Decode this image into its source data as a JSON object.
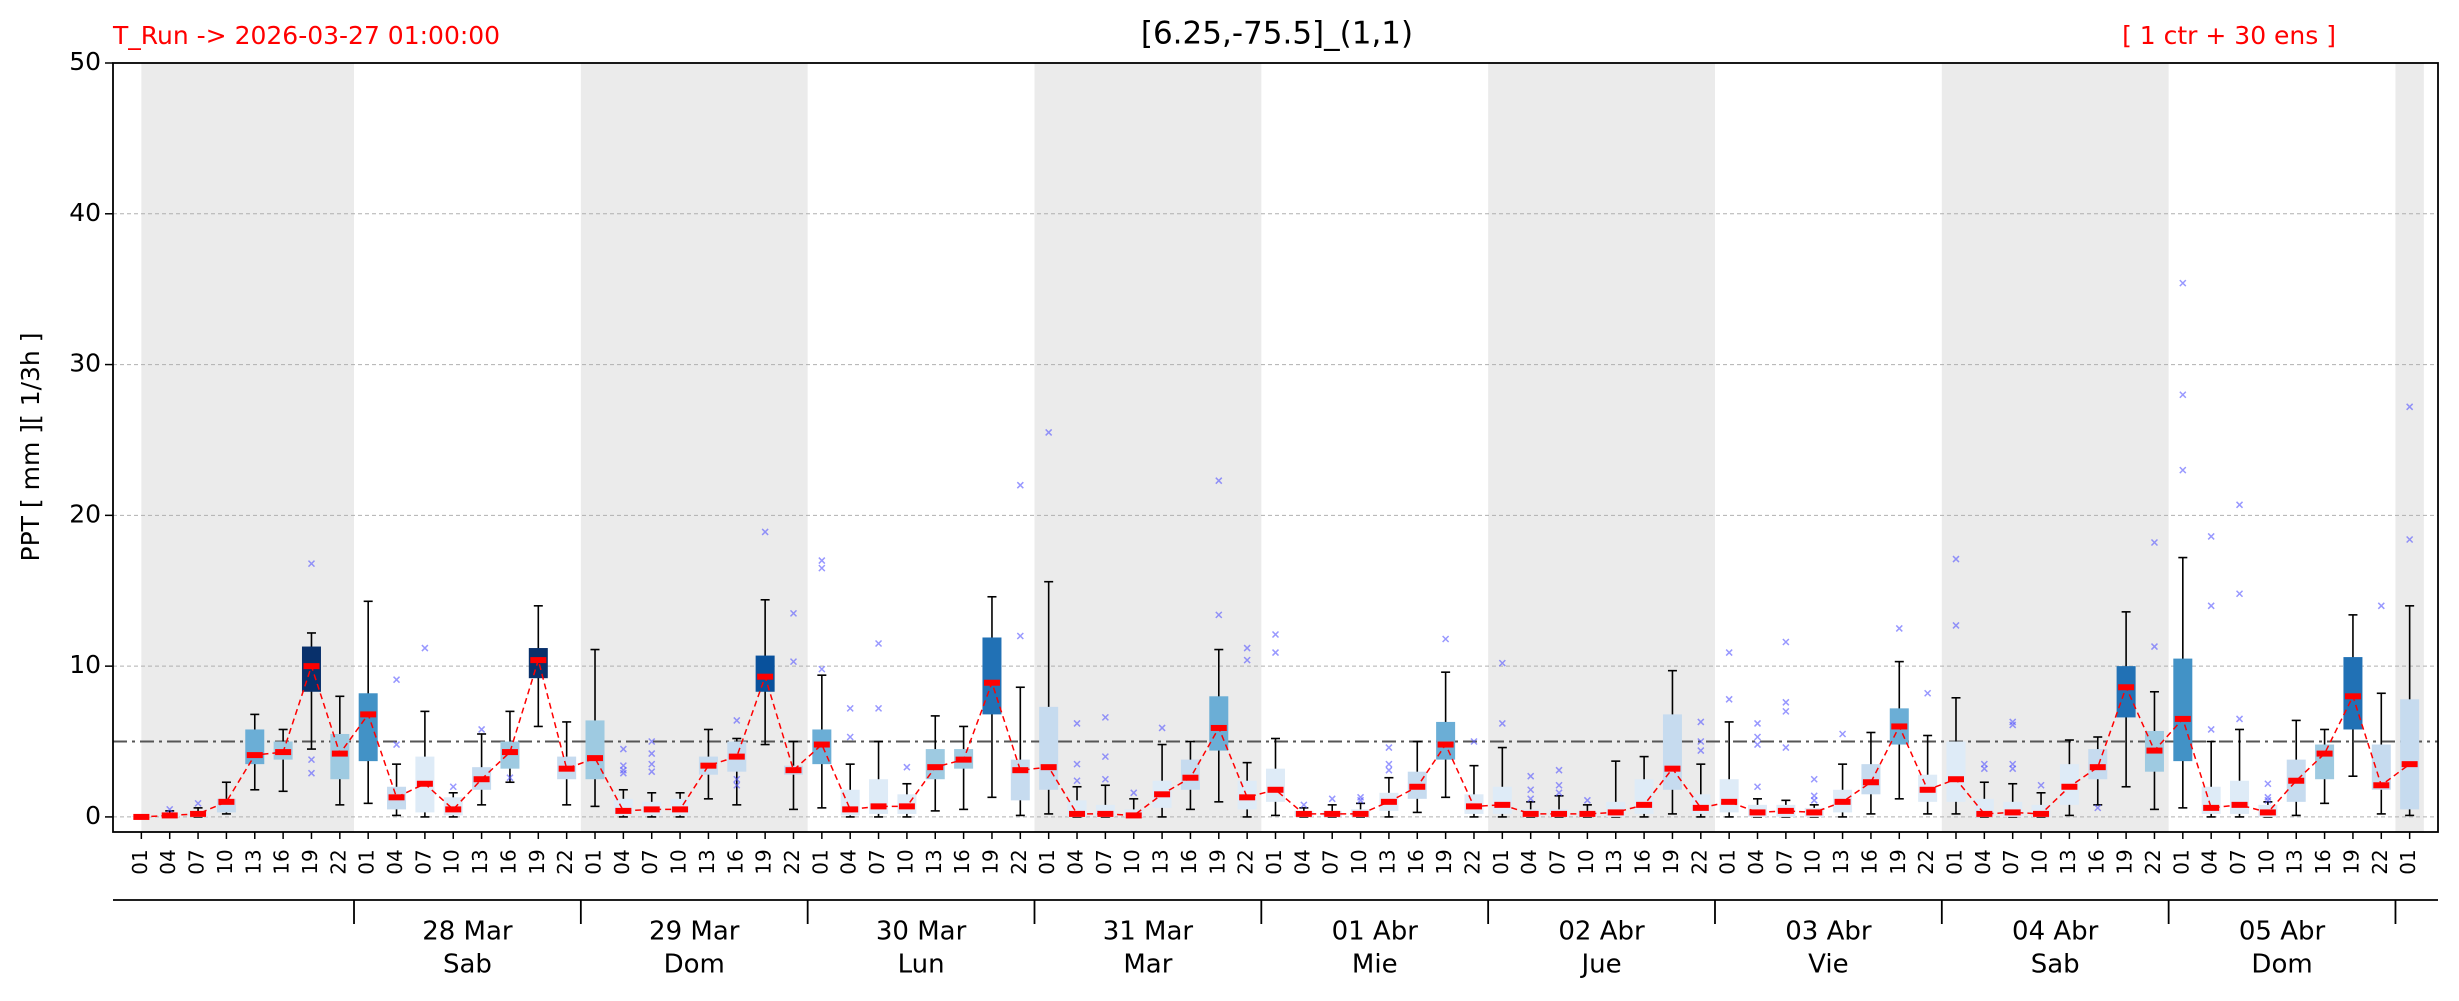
{
  "chart_data": {
    "type": "box",
    "title": "[6.25,-75.5]_(1,1)",
    "run_label": "T_Run -> 2026-03-27  01:00:00",
    "members_label": "[ 1 ctr + 30 ens ]",
    "y_label": "PPT  [ mm ][ 1/3h ]",
    "categories": [
      "01",
      "04",
      "07",
      "10",
      "13",
      "16",
      "19",
      "22",
      "01",
      "04",
      "07",
      "10",
      "13",
      "16",
      "19",
      "22",
      "01",
      "04",
      "07",
      "10",
      "13",
      "16",
      "19",
      "22",
      "01",
      "04",
      "07",
      "10",
      "13",
      "16",
      "19",
      "22",
      "01",
      "04",
      "07",
      "10",
      "13",
      "16",
      "19",
      "22",
      "01",
      "04",
      "07",
      "10",
      "13",
      "16",
      "19",
      "22",
      "01",
      "04",
      "07",
      "10",
      "13",
      "16",
      "19",
      "22",
      "01",
      "04",
      "07",
      "10",
      "13",
      "16",
      "19",
      "22",
      "01",
      "04",
      "07",
      "10",
      "13",
      "16",
      "19",
      "22",
      "01",
      "04",
      "07",
      "10",
      "13",
      "16",
      "19",
      "22",
      "01"
    ],
    "days": [
      {
        "date": "28 Mar",
        "weekday": "Sab"
      },
      {
        "date": "29 Mar",
        "weekday": "Dom"
      },
      {
        "date": "30 Mar",
        "weekday": "Lun"
      },
      {
        "date": "31 Mar",
        "weekday": "Mar"
      },
      {
        "date": "01 Abr",
        "weekday": "Mie"
      },
      {
        "date": "02 Abr",
        "weekday": "Jue"
      },
      {
        "date": "03 Abr",
        "weekday": "Vie"
      },
      {
        "date": "04 Abr",
        "weekday": "Sab"
      },
      {
        "date": "05 Abr",
        "weekday": "Dom"
      }
    ],
    "low": [
      0,
      0,
      0,
      0.2,
      1.8,
      1.7,
      4.5,
      0.8,
      0.9,
      0.1,
      0,
      0,
      0.8,
      2.3,
      6.0,
      0.8,
      0.7,
      0,
      0,
      0,
      1.2,
      0.8,
      4.8,
      0.5,
      0.6,
      0,
      0,
      0,
      0.4,
      0.5,
      1.3,
      0.1,
      0.2,
      0,
      0,
      0,
      0,
      0.5,
      1.0,
      0,
      0.1,
      0,
      0,
      0,
      0,
      0.3,
      1.3,
      0,
      0,
      0,
      0,
      0,
      0,
      0,
      0.2,
      0,
      0,
      0,
      0,
      0,
      0,
      0.2,
      1.2,
      0.2,
      0.2,
      0,
      0,
      0,
      0.1,
      0.8,
      2.0,
      0.5,
      0.6,
      0,
      0,
      0,
      0.1,
      0.9,
      2.7,
      0.2,
      0.1
    ],
    "q1": [
      0,
      0,
      0,
      0.3,
      3.5,
      3.8,
      8.3,
      2.5,
      3.7,
      0.5,
      0.3,
      0.1,
      1.8,
      3.2,
      9.2,
      2.5,
      2.5,
      0.1,
      0.1,
      0.1,
      2.8,
      3.0,
      8.3,
      2.8,
      3.5,
      0.1,
      0.2,
      0.2,
      2.5,
      3.2,
      6.8,
      1.1,
      1.8,
      0,
      0,
      0,
      0.6,
      1.8,
      4.4,
      0.5,
      1.0,
      0,
      0,
      0,
      0.4,
      1.2,
      3.8,
      0.2,
      0.2,
      0,
      0,
      0,
      0,
      0.2,
      1.8,
      0.2,
      0.3,
      0,
      0,
      0,
      0.3,
      1.5,
      4.8,
      1.0,
      1.0,
      0,
      0,
      0,
      0.8,
      2.5,
      6.6,
      3.0,
      3.7,
      0.2,
      0.2,
      0,
      1.0,
      2.5,
      5.8,
      1.8,
      0.5
    ],
    "median": [
      0,
      0.1,
      0.2,
      1.0,
      4.1,
      4.3,
      10.0,
      4.2,
      6.8,
      1.3,
      2.2,
      0.5,
      2.5,
      4.3,
      10.4,
      3.2,
      3.9,
      0.4,
      0.5,
      0.5,
      3.4,
      4.0,
      9.3,
      3.1,
      4.8,
      0.5,
      0.7,
      0.7,
      3.3,
      3.8,
      8.9,
      3.1,
      3.3,
      0.2,
      0.2,
      0.1,
      1.5,
      2.6,
      5.9,
      1.3,
      1.8,
      0.2,
      0.2,
      0.2,
      1.0,
      2.0,
      4.8,
      0.7,
      0.8,
      0.2,
      0.2,
      0.2,
      0.3,
      0.8,
      3.2,
      0.6,
      1.0,
      0.3,
      0.4,
      0.3,
      1.0,
      2.3,
      6.0,
      1.8,
      2.5,
      0.2,
      0.3,
      0.2,
      2.0,
      3.3,
      8.6,
      4.4,
      6.5,
      0.6,
      0.8,
      0.3,
      2.4,
      4.2,
      8.0,
      2.1,
      3.5
    ],
    "q3": [
      0.05,
      0.2,
      0.3,
      1.2,
      5.8,
      5.0,
      11.3,
      5.5,
      8.2,
      2.0,
      4.0,
      1.3,
      3.3,
      5.0,
      11.2,
      4.0,
      6.4,
      1.2,
      1.0,
      1.2,
      4.0,
      5.0,
      10.7,
      3.4,
      5.8,
      1.8,
      2.5,
      1.5,
      4.5,
      4.5,
      11.9,
      3.8,
      7.3,
      1.1,
      0.8,
      0.5,
      2.4,
      3.8,
      8.0,
      2.4,
      3.2,
      0.4,
      0.4,
      0.5,
      1.6,
      3.0,
      6.3,
      1.5,
      2.0,
      0.5,
      0.5,
      0.4,
      1.0,
      2.5,
      6.8,
      1.5,
      2.5,
      0.8,
      0.8,
      0.6,
      1.8,
      3.5,
      7.2,
      2.8,
      5.0,
      1.2,
      1.0,
      0.8,
      3.5,
      4.5,
      10.0,
      5.7,
      10.5,
      2.0,
      2.4,
      0.8,
      3.8,
      4.8,
      10.6,
      4.8,
      7.8
    ],
    "high": [
      0.1,
      0.4,
      0.6,
      2.3,
      6.8,
      5.8,
      12.2,
      8.0,
      14.3,
      3.5,
      7.0,
      1.6,
      5.5,
      7.0,
      14.0,
      6.3,
      11.1,
      1.8,
      1.6,
      1.6,
      5.8,
      5.2,
      14.4,
      5.0,
      9.4,
      3.5,
      5.0,
      2.2,
      6.7,
      6.0,
      14.6,
      8.6,
      15.6,
      2.0,
      2.1,
      1.2,
      4.8,
      5.0,
      11.1,
      3.6,
      5.2,
      0.6,
      0.8,
      0.9,
      2.6,
      5.0,
      9.6,
      3.4,
      4.6,
      1.0,
      1.4,
      0.8,
      3.7,
      4.0,
      9.7,
      3.5,
      6.3,
      1.2,
      1.1,
      0.8,
      3.5,
      5.6,
      10.3,
      5.4,
      7.9,
      2.3,
      2.2,
      1.6,
      5.1,
      5.3,
      13.6,
      8.3,
      17.2,
      5.0,
      5.8,
      1.0,
      6.4,
      5.8,
      13.4,
      8.2,
      14.0
    ],
    "outliers": [
      [],
      [
        0.5
      ],
      [
        0.9
      ],
      [],
      [],
      [],
      [
        16.8,
        3.8,
        2.9
      ],
      [],
      [],
      [
        9.1,
        4.8
      ],
      [
        11.2
      ],
      [
        2.0
      ],
      [
        5.8
      ],
      [
        2.6
      ],
      [],
      [],
      [],
      [
        4.5,
        3.4,
        3.1,
        2.9
      ],
      [
        5.0,
        4.2,
        3.5,
        3.0
      ],
      [],
      [],
      [
        6.4,
        2.5,
        2.1
      ],
      [
        18.9
      ],
      [
        13.5,
        10.3
      ],
      [
        17.0,
        16.5,
        9.8
      ],
      [
        7.2,
        5.3
      ],
      [
        11.5,
        7.2
      ],
      [
        3.3
      ],
      [],
      [],
      [],
      [
        22.0,
        12.0
      ],
      [
        25.5
      ],
      [
        6.2,
        3.5,
        2.4
      ],
      [
        6.6,
        4.0,
        2.5
      ],
      [
        1.6
      ],
      [
        5.9
      ],
      [],
      [
        22.3,
        13.4
      ],
      [
        11.2,
        10.4
      ],
      [
        12.1,
        10.9
      ],
      [
        0.8
      ],
      [
        1.2
      ],
      [
        1.3,
        1.1
      ],
      [
        4.6,
        3.5,
        3.1
      ],
      [],
      [
        11.8
      ],
      [
        5.0
      ],
      [
        10.2,
        6.2
      ],
      [
        2.7,
        1.8,
        1.2
      ],
      [
        3.1,
        2.1,
        1.6
      ],
      [
        1.1
      ],
      [],
      [],
      [],
      [
        6.3,
        5.0,
        4.4
      ],
      [
        10.9,
        7.8
      ],
      [
        6.2,
        5.3,
        4.8,
        2.0
      ],
      [
        11.6,
        7.6,
        7.0,
        4.6
      ],
      [
        2.5,
        1.4,
        1.1
      ],
      [
        5.5
      ],
      [],
      [
        12.5
      ],
      [
        8.2
      ],
      [
        17.1,
        12.7
      ],
      [
        3.5,
        3.2
      ],
      [
        6.3,
        6.1,
        3.5,
        3.2
      ],
      [
        2.1
      ],
      [],
      [
        0.6
      ],
      [],
      [
        18.2,
        11.3
      ],
      [
        35.4,
        28.0,
        23.0
      ],
      [
        18.6,
        14.0,
        5.8
      ],
      [
        20.7,
        14.8,
        6.5
      ],
      [
        2.2,
        1.3,
        1.1
      ],
      [],
      [],
      [],
      [
        14.0
      ],
      [
        27.2,
        18.4
      ]
    ],
    "box_colors": [
      "#deebf7",
      "#deebf7",
      "#deebf7",
      "#c6dbef",
      "#6baed6",
      "#9ecae1",
      "#08306b",
      "#9ecae1",
      "#4292c6",
      "#c6dbef",
      "#deebf7",
      "#deebf7",
      "#c6dbef",
      "#9ecae1",
      "#08306b",
      "#c6dbef",
      "#9ecae1",
      "#deebf7",
      "#deebf7",
      "#deebf7",
      "#c6dbef",
      "#c6dbef",
      "#08519c",
      "#c6dbef",
      "#6baed6",
      "#deebf7",
      "#deebf7",
      "#deebf7",
      "#9ecae1",
      "#9ecae1",
      "#2171b5",
      "#c6dbef",
      "#c6dbef",
      "#deebf7",
      "#deebf7",
      "#deebf7",
      "#deebf7",
      "#c6dbef",
      "#6baed6",
      "#deebf7",
      "#deebf7",
      "#deebf7",
      "#deebf7",
      "#deebf7",
      "#deebf7",
      "#c6dbef",
      "#6baed6",
      "#deebf7",
      "#deebf7",
      "#deebf7",
      "#deebf7",
      "#deebf7",
      "#deebf7",
      "#deebf7",
      "#c6dbef",
      "#deebf7",
      "#deebf7",
      "#deebf7",
      "#deebf7",
      "#deebf7",
      "#deebf7",
      "#c6dbef",
      "#6baed6",
      "#deebf7",
      "#deebf7",
      "#deebf7",
      "#deebf7",
      "#deebf7",
      "#deebf7",
      "#c6dbef",
      "#2171b5",
      "#9ecae1",
      "#4292c6",
      "#deebf7",
      "#deebf7",
      "#deebf7",
      "#c6dbef",
      "#9ecae1",
      "#2171b5",
      "#c6dbef",
      "#c6dbef"
    ],
    "median_color": "#ff0000",
    "outlier_color": "#5555ff",
    "threshold": 5,
    "ylim": [
      -1,
      50
    ],
    "yticks": [
      0,
      10,
      20,
      30,
      40,
      50
    ],
    "grid": true
  }
}
